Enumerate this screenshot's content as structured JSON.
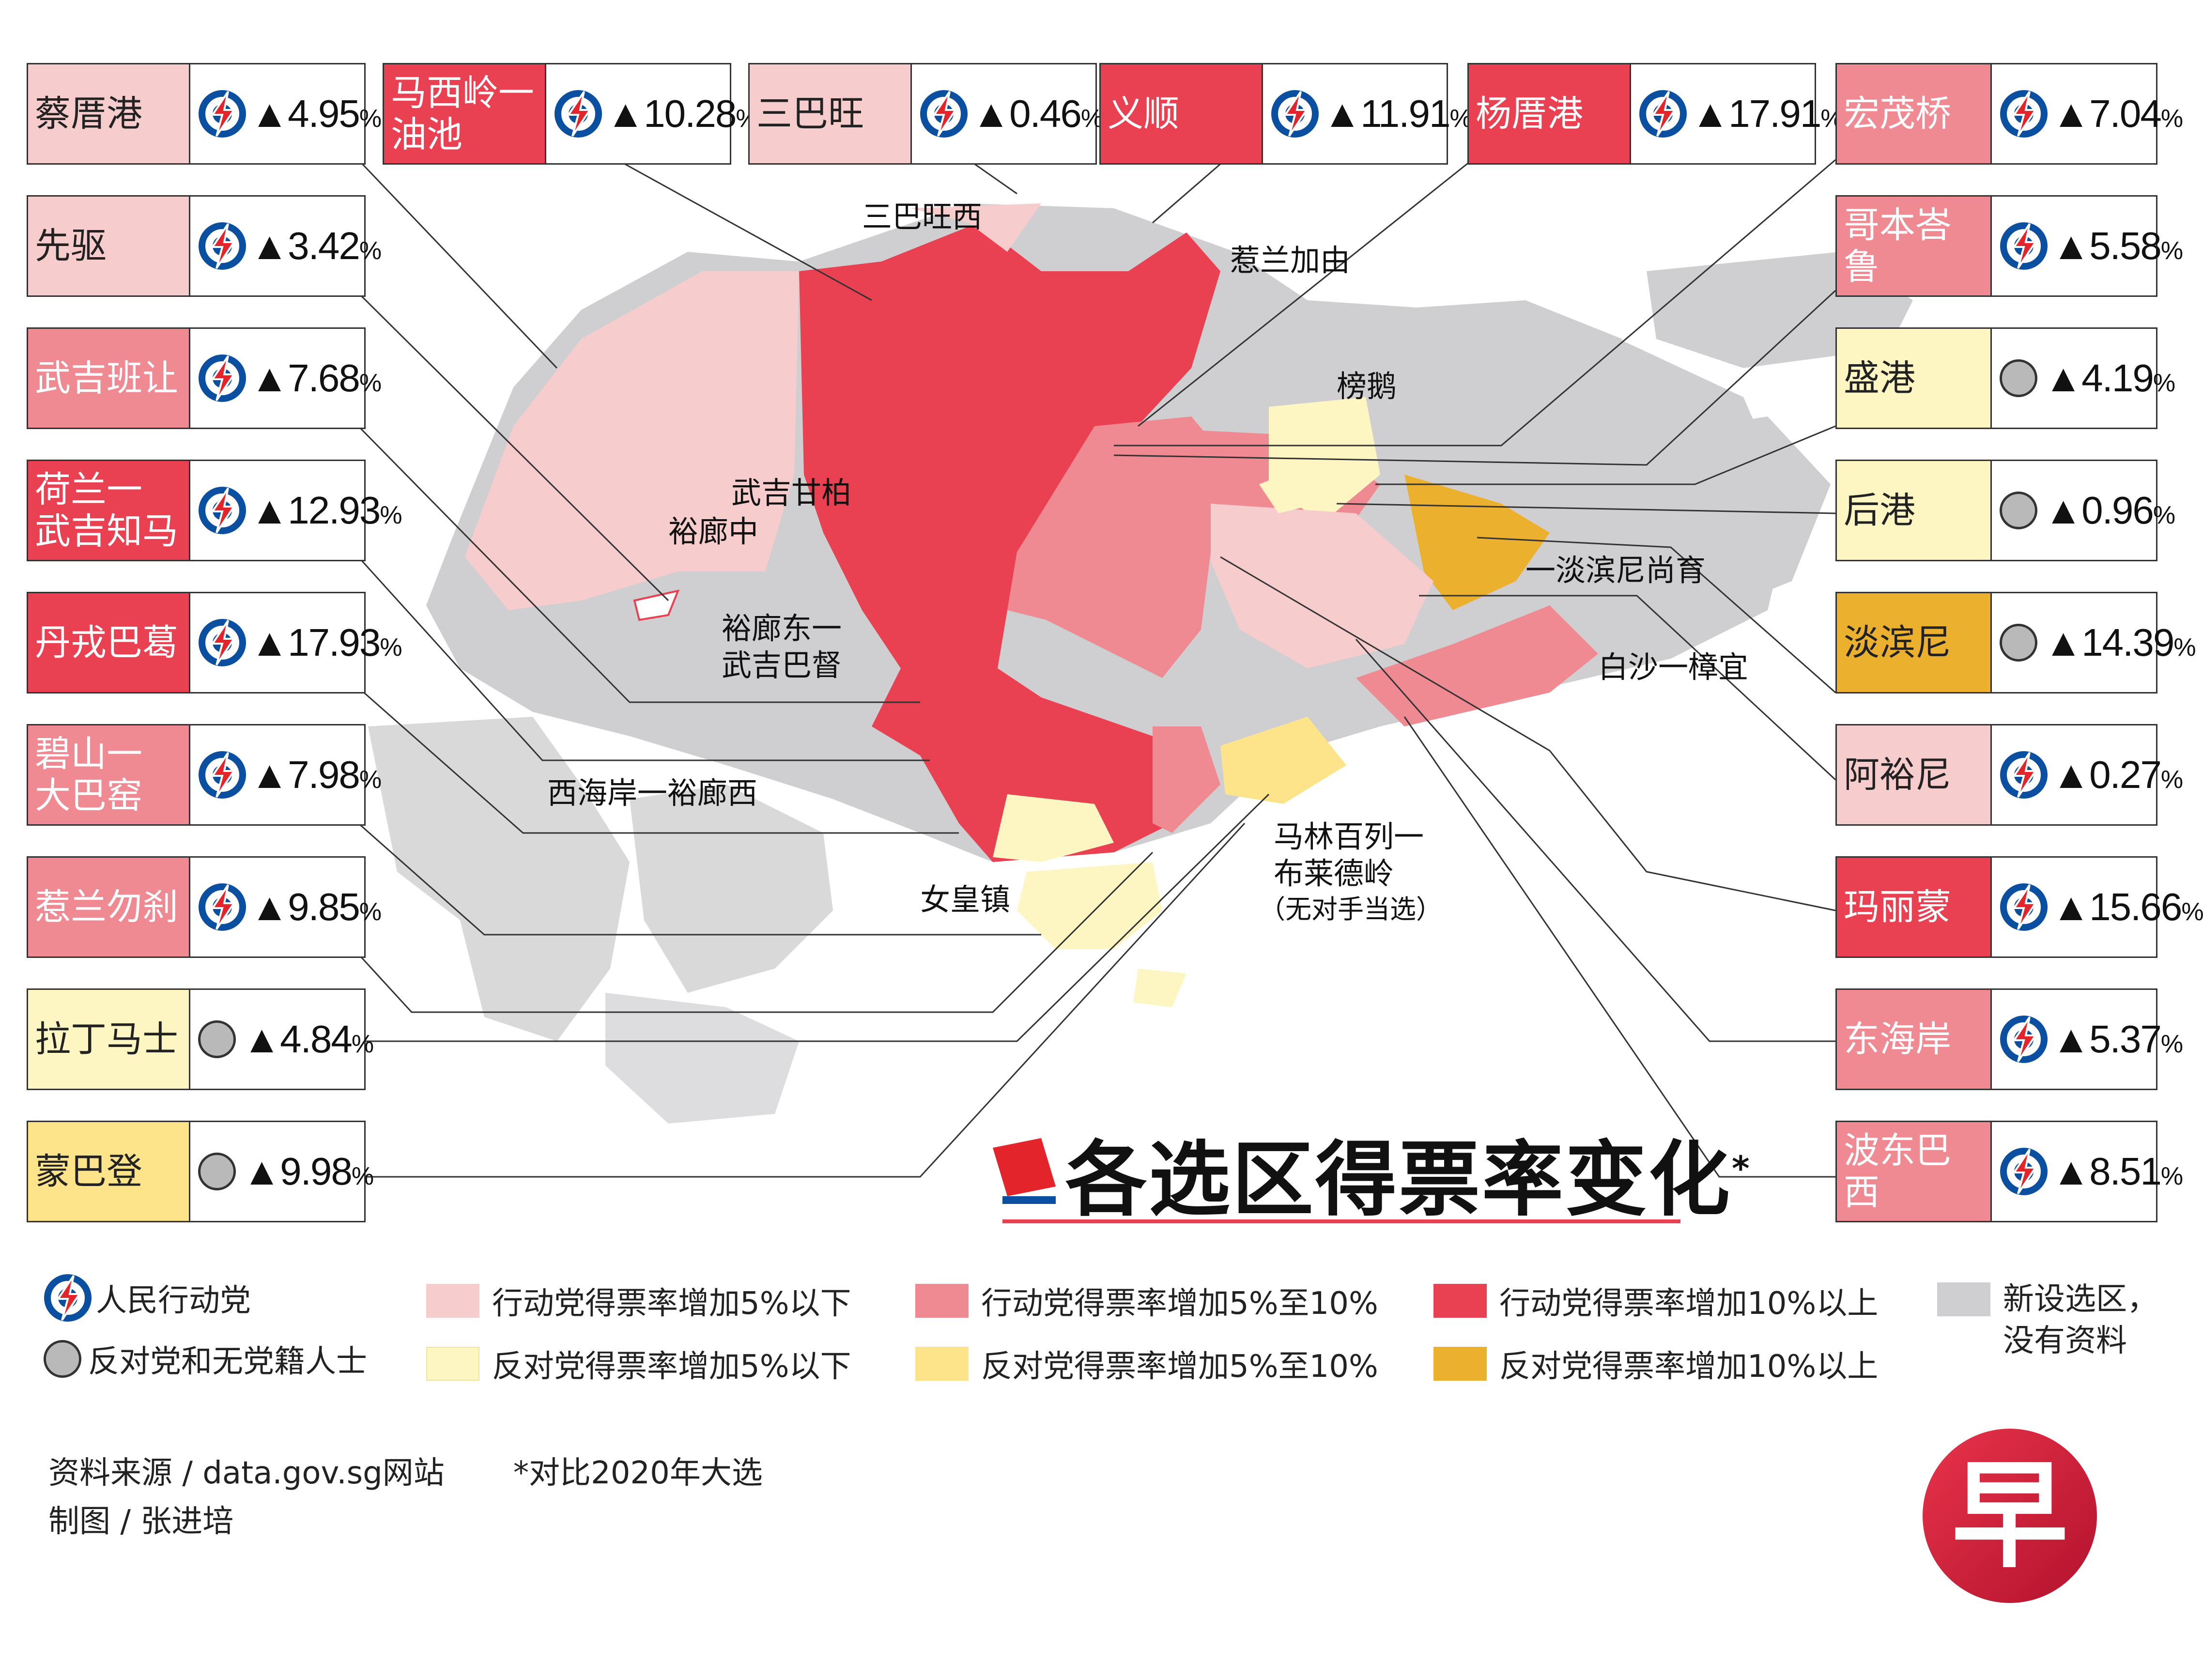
{
  "title": "各选区得票率变化",
  "title_mark": "*",
  "colors": {
    "pap_lt5": "#f6cccd",
    "pap_5_10": "#ef8a93",
    "pap_gt10": "#e94152",
    "opp_lt5": "#fdf6c3",
    "opp_5_10": "#fde48b",
    "opp_gt10": "#ecb02f",
    "new": "#cfcfd1",
    "pap_blue": "#0b4fa0",
    "pap_red": "#e3242b"
  },
  "districts_left": [
    {
      "name": "蔡厝港",
      "party": "pap",
      "change": "▲4.95",
      "unit": "%",
      "tier": "pap_lt5"
    },
    {
      "name": "先驱",
      "party": "pap",
      "change": "▲3.42",
      "unit": "%",
      "tier": "pap_lt5"
    },
    {
      "name": "武吉班让",
      "party": "pap",
      "change": "▲7.68",
      "unit": "%",
      "tier": "pap_5_10"
    },
    {
      "name": "荷兰一\n武吉知马",
      "party": "pap",
      "change": "▲12.93",
      "unit": "%",
      "tier": "pap_gt10"
    },
    {
      "name": "丹戎巴葛",
      "party": "pap",
      "change": "▲17.93",
      "unit": "%",
      "tier": "pap_gt10"
    },
    {
      "name": "碧山一\n大巴窑",
      "party": "pap",
      "change": "▲7.98",
      "unit": "%",
      "tier": "pap_5_10"
    },
    {
      "name": "惹兰勿刹",
      "party": "pap",
      "change": "▲9.85",
      "unit": "%",
      "tier": "pap_5_10"
    },
    {
      "name": "拉丁马士",
      "party": "opp",
      "change": "▲4.84",
      "unit": "%",
      "tier": "opp_lt5"
    },
    {
      "name": "蒙巴登",
      "party": "opp",
      "change": "▲9.98",
      "unit": "%",
      "tier": "opp_5_10"
    }
  ],
  "districts_top": [
    {
      "name": "马西岭一\n油池",
      "party": "pap",
      "change": "▲10.28",
      "unit": "%",
      "tier": "pap_gt10"
    },
    {
      "name": "三巴旺",
      "party": "pap",
      "change": "▲0.46",
      "unit": "%",
      "tier": "pap_lt5"
    },
    {
      "name": "义顺",
      "party": "pap",
      "change": "▲11.91",
      "unit": "%",
      "tier": "pap_gt10"
    },
    {
      "name": "杨厝港",
      "party": "pap",
      "change": "▲17.91",
      "unit": "%",
      "tier": "pap_gt10"
    }
  ],
  "districts_right": [
    {
      "name": "宏茂桥",
      "party": "pap",
      "change": "▲7.04",
      "unit": "%",
      "tier": "pap_5_10"
    },
    {
      "name": "哥本峇鲁",
      "party": "pap",
      "change": "▲5.58",
      "unit": "%",
      "tier": "pap_5_10"
    },
    {
      "name": "盛港",
      "party": "opp",
      "change": "▲4.19",
      "unit": "%",
      "tier": "opp_lt5"
    },
    {
      "name": "后港",
      "party": "opp",
      "change": "▲0.96",
      "unit": "%",
      "tier": "opp_lt5"
    },
    {
      "name": "淡滨尼",
      "party": "opp",
      "change": "▲14.39",
      "unit": "%",
      "tier": "opp_gt10"
    },
    {
      "name": "阿裕尼",
      "party": "pap",
      "change": "▲0.27",
      "unit": "%",
      "tier": "pap_lt5"
    },
    {
      "name": "玛丽蒙",
      "party": "pap",
      "change": "▲15.66",
      "unit": "%",
      "tier": "pap_gt10"
    },
    {
      "name": "东海岸",
      "party": "pap",
      "change": "▲5.37",
      "unit": "%",
      "tier": "pap_5_10"
    },
    {
      "name": "波东巴西",
      "party": "pap",
      "change": "▲8.51",
      "unit": "%",
      "tier": "pap_5_10"
    }
  ],
  "map_labels": [
    "三巴旺西",
    "惹兰加由",
    "榜鹅",
    "武吉甘柏",
    "裕廊中",
    "裕廊东一\n武吉巴督",
    "一淡滨尼尚育",
    "白沙一樟宜",
    "西海岸一裕廊西",
    "女皇镇",
    "马林百列一\n布莱德岭",
    "（无对手当选）"
  ],
  "legend": {
    "pap": "人民行动党",
    "opp": "反对党和无党籍人士",
    "pap_lt5": "行动党得票率增加5%以下",
    "pap_5_10": "行动党得票率增加5%至10%",
    "pap_gt10": "行动党得票率增加10%以上",
    "opp_lt5": "反对党得票率增加5%以下",
    "opp_5_10": "反对党得票率增加5%至10%",
    "opp_gt10": "反对党得票率增加10%以上",
    "new": "新设选区，\n没有资料"
  },
  "footer": {
    "source": "资料来源 / data.gov.sg网站",
    "note": "*对比2020年大选",
    "credit": "制图 / 张进培"
  },
  "logo_char": "早"
}
